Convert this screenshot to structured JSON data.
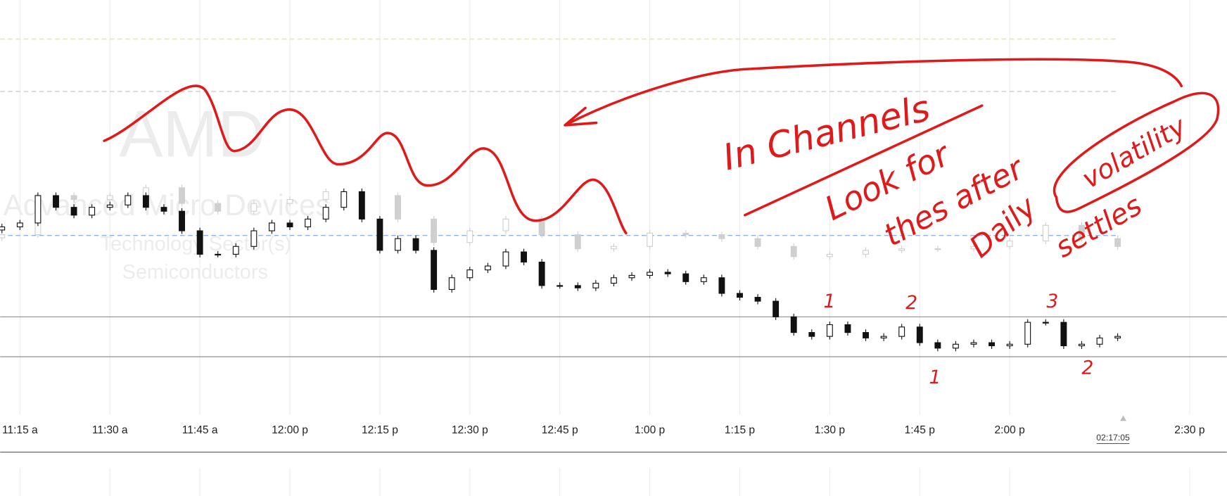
{
  "chart_data": {
    "type": "candlestick",
    "watermark": {
      "symbol": "AMD",
      "name": "Advanced Micro Devices",
      "sector": "Technology Sector(s)",
      "industry": "Semiconductors"
    },
    "xlim": [
      671.7,
      876.2
    ],
    "ylim": [
      -25,
      240
    ],
    "xticks": [
      {
        "value": 675,
        "label": "11:15 a"
      },
      {
        "value": 690,
        "label": "11:30 a"
      },
      {
        "value": 705,
        "label": "11:45 a"
      },
      {
        "value": 720,
        "label": "12:00 p"
      },
      {
        "value": 735,
        "label": "12:15 p"
      },
      {
        "value": 750,
        "label": "12:30 p"
      },
      {
        "value": 765,
        "label": "12:45 p"
      },
      {
        "value": 780,
        "label": "1:00 p"
      },
      {
        "value": 795,
        "label": "1:15 p"
      },
      {
        "value": 810,
        "label": "1:30 p"
      },
      {
        "value": 825,
        "label": "1:45 p"
      },
      {
        "value": 840,
        "label": "2:00 p"
      },
      {
        "value": 870,
        "label": "2:30 p"
      }
    ],
    "current_time": {
      "value": 857.1,
      "label": "02:17:05"
    },
    "grid": true,
    "reference_lines": [
      {
        "value": 215,
        "color": "#e8ec7a",
        "dash": true
      },
      {
        "value": 181.5,
        "color": "#cccccc",
        "dash": true
      },
      {
        "value": 89.5,
        "color": "#8fb3e6",
        "dash": true
      },
      {
        "value": 37.5,
        "color": "#9a9a9a",
        "dash": false
      },
      {
        "value": 12,
        "color": "#9a9a9a",
        "dash": false
      }
    ],
    "series": [
      {
        "color": "#cfcfcf",
        "up_fill": "#ffffff",
        "down_fill": "#cfcfcf",
        "x": [
          672,
          678,
          684,
          690,
          696,
          702,
          708,
          714,
          720,
          726,
          732,
          738,
          744,
          750,
          756,
          762,
          768,
          774,
          780,
          786,
          792,
          798,
          804,
          810,
          816,
          822,
          828,
          834,
          840,
          846,
          852,
          858
        ],
        "open": [
          88,
          90,
          115,
          112.5,
          115,
          120,
          110,
          105,
          110,
          112.5,
          117.5,
          115,
          100,
          85,
          92.5,
          100,
          90,
          81,
          82.5,
          91,
          90,
          87.5,
          82.5,
          76,
          77.5,
          80,
          81,
          81,
          82.5,
          86,
          96,
          87.5
        ],
        "high": [
          92,
          117,
          117,
          117,
          122,
          122,
          112,
          112,
          114.5,
          119.5,
          119.5,
          117,
          102,
          94.5,
          102,
          102,
          92,
          84.5,
          93,
          93,
          92,
          89.5,
          84.5,
          79.5,
          82,
          83,
          83,
          84.5,
          88,
          98,
          98,
          89.5
        ],
        "low": [
          86,
          88,
          110.5,
          110.5,
          113,
          108,
          103,
          103,
          108,
          110.5,
          113,
          98,
          83,
          83,
          90.5,
          88,
          79,
          79,
          80.5,
          88,
          85.5,
          80.5,
          74,
          74,
          75.5,
          78,
          79,
          79,
          80.5,
          84,
          85.5,
          80.5
        ],
        "close": [
          90,
          115,
          112.5,
          115,
          120,
          110,
          105,
          110,
          112.5,
          117.5,
          115,
          100,
          85,
          92.5,
          100,
          90,
          81,
          82.5,
          91,
          90,
          87.5,
          82.5,
          76,
          77.5,
          80,
          81,
          81,
          82.5,
          86,
          96,
          87.5,
          82.5
        ]
      },
      {
        "color": "#111111",
        "up_fill": "#ffffff",
        "down_fill": "#111111",
        "x": [
          672,
          675,
          678,
          681,
          684,
          687,
          690,
          693,
          696,
          699,
          702,
          705,
          708,
          711,
          714,
          717,
          720,
          723,
          726,
          729,
          732,
          735,
          738,
          741,
          744,
          747,
          750,
          753,
          756,
          759,
          762,
          765,
          768,
          771,
          774,
          777,
          780,
          783,
          786,
          789,
          792,
          795,
          798,
          801,
          804,
          807,
          810,
          813,
          816,
          819,
          822,
          825,
          828,
          831,
          834,
          837,
          840,
          843,
          846,
          849,
          852,
          855,
          858
        ],
        "open": [
          93,
          95,
          97.5,
          115,
          107.5,
          102.5,
          107.5,
          109,
          115,
          107.5,
          105,
          92.5,
          77.5,
          77.5,
          82.5,
          92.5,
          97.5,
          95,
          100,
          107.5,
          117.5,
          100,
          80,
          87.5,
          80,
          55,
          62.5,
          67.5,
          70,
          79,
          72.5,
          57.5,
          57.5,
          56,
          59,
          62.5,
          64,
          66,
          65,
          60,
          62.5,
          52.5,
          50,
          47.5,
          37.5,
          27.5,
          25,
          32.5,
          27.5,
          24,
          25,
          31,
          21,
          17.5,
          20,
          21,
          19,
          20,
          34,
          34,
          19,
          20,
          24
        ],
        "high": [
          97,
          99.5,
          117,
          117,
          109.5,
          109.5,
          111,
          117,
          117,
          109.5,
          107,
          94.5,
          79.5,
          84.5,
          94.5,
          99.5,
          99.5,
          102,
          109.5,
          119.5,
          119.5,
          102,
          89.5,
          89.5,
          82,
          64.5,
          69.5,
          72,
          81,
          81,
          74.5,
          59.5,
          59.5,
          61,
          64.5,
          66,
          68,
          68,
          67,
          64.5,
          64.5,
          54.5,
          52,
          49.5,
          39.5,
          29.5,
          34.5,
          34.5,
          29.5,
          27,
          33,
          33,
          23,
          22,
          23,
          23,
          22,
          36,
          36,
          36,
          22,
          26,
          27
        ],
        "low": [
          91,
          93,
          95.5,
          105.5,
          100.5,
          100.5,
          105.5,
          107,
          105.5,
          103,
          90.5,
          75.5,
          75.5,
          75.5,
          80.5,
          90.5,
          93,
          93,
          98,
          105.5,
          98,
          78,
          78,
          78,
          53,
          53,
          60.5,
          65.5,
          68,
          70.5,
          55.5,
          55.5,
          54,
          54,
          57,
          60.5,
          62,
          63,
          58,
          58,
          50.5,
          48,
          45.5,
          35.5,
          25.5,
          23,
          23,
          25.5,
          22,
          22,
          23,
          19,
          15.5,
          15.5,
          18,
          17,
          17,
          18,
          32,
          17,
          17,
          18,
          22
        ],
        "close": [
          95,
          97.5,
          115,
          107.5,
          102.5,
          107.5,
          109,
          115,
          107.5,
          105,
          92.5,
          77.5,
          77.5,
          82.5,
          92.5,
          97.5,
          95,
          100,
          107.5,
          117.5,
          100,
          80,
          87.5,
          80,
          55,
          62.5,
          67.5,
          70,
          79,
          72.5,
          57.5,
          57.5,
          56,
          59,
          62.5,
          64,
          66,
          65,
          60,
          62.5,
          52.5,
          50,
          47.5,
          37.5,
          27.5,
          25,
          32.5,
          27.5,
          24,
          25,
          31,
          21,
          17.5,
          20,
          21,
          19,
          20,
          34,
          34,
          19,
          20,
          24,
          25
        ]
      }
    ],
    "annotations": [
      "In Channels",
      "Look for",
      "thes after",
      "Daily",
      "volatility",
      "settles"
    ],
    "swing_labels": [
      "1",
      "2",
      "3",
      "1",
      "2"
    ]
  }
}
